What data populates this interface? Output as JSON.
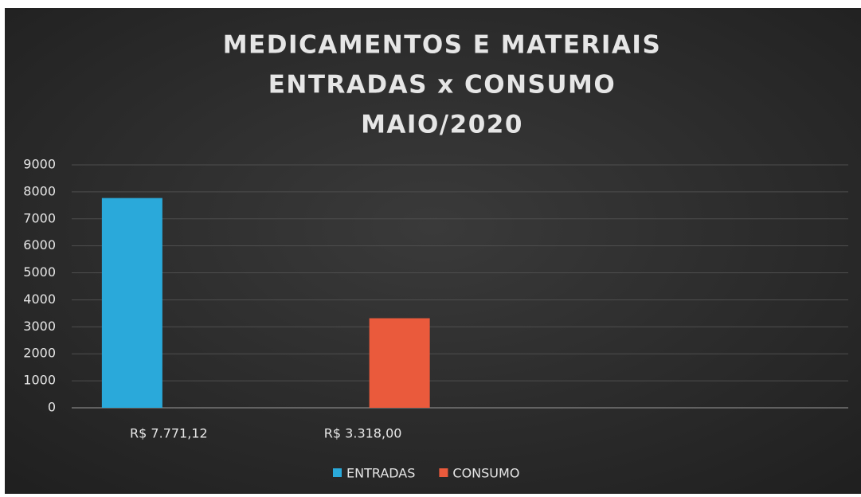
{
  "chart_data": {
    "type": "bar",
    "title": [
      "MEDICAMENTOS  E MATERIAIS",
      "ENTRADAS x CONSUMO",
      "MAIO/2020"
    ],
    "categories": [
      "R$ 7.771,12",
      "R$ 3.318,00",
      null,
      null
    ],
    "series": [
      {
        "name": "ENTRADAS",
        "color": "#2aa9da",
        "values": [
          7771.12,
          null,
          null,
          null
        ]
      },
      {
        "name": "CONSUMO",
        "color": "#ea5a3c",
        "values": [
          null,
          3318,
          null,
          null
        ]
      }
    ],
    "ylim": [
      0,
      9000
    ],
    "yticks": [
      0,
      1000,
      2000,
      3000,
      4000,
      5000,
      6000,
      7000,
      8000,
      9000
    ],
    "grid": true,
    "legend": "bottom"
  }
}
